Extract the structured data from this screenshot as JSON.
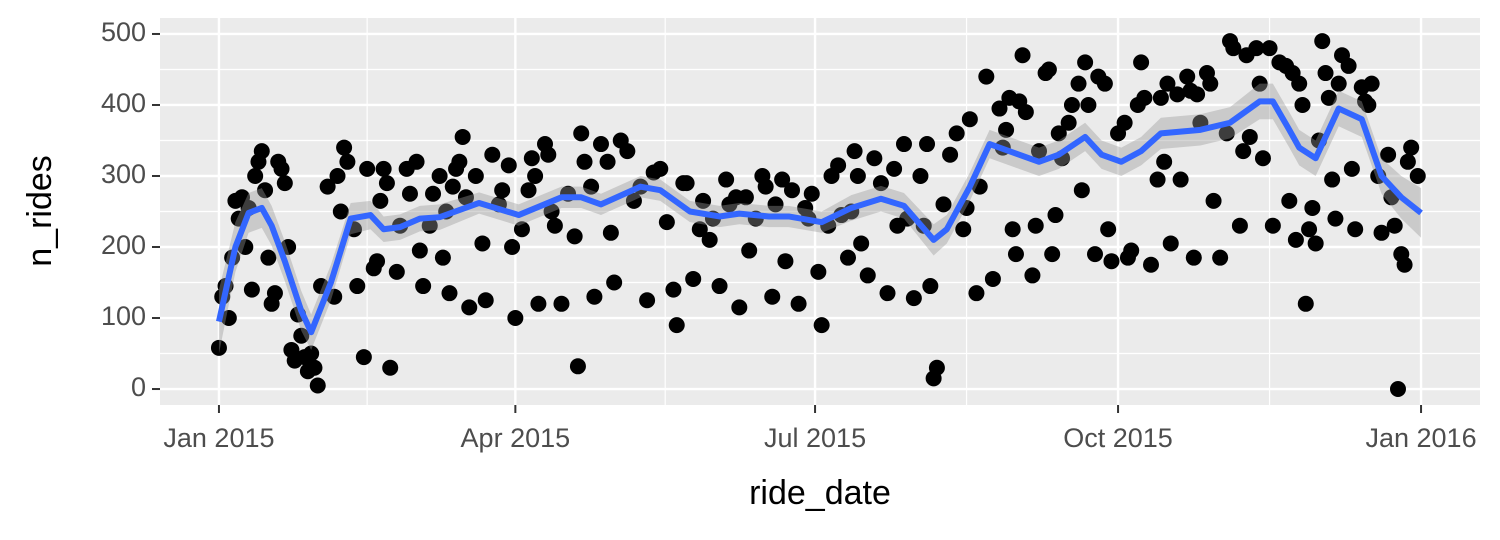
{
  "chart_data": {
    "type": "scatter",
    "x_label": "ride_date",
    "y_label": "n_rides",
    "xlim": [
      -17.9,
      382.9
    ],
    "ylim": [
      -22.5,
      522.5
    ],
    "xticks": [
      {
        "value": 0,
        "label": "Jan 2015"
      },
      {
        "value": 90,
        "label": "Apr 2015"
      },
      {
        "value": 181,
        "label": "Jul 2015"
      },
      {
        "value": 273,
        "label": "Oct 2015"
      },
      {
        "value": 365,
        "label": "Jan 2016"
      }
    ],
    "yticks": [
      0,
      100,
      200,
      300,
      400,
      500
    ],
    "grid": true,
    "points": {
      "color": "#000000",
      "x": [
        0,
        1,
        2,
        3,
        4,
        5,
        6,
        7,
        8,
        9,
        10,
        11,
        12,
        13,
        14,
        15,
        16,
        17,
        18,
        19,
        20,
        21,
        22,
        23,
        24,
        25,
        26,
        27,
        28,
        29,
        30,
        31,
        33,
        35,
        36,
        37,
        38,
        39,
        41,
        42,
        44,
        45,
        47,
        48,
        49,
        50,
        51,
        52,
        54,
        55,
        57,
        58,
        60,
        61,
        62,
        64,
        65,
        67,
        68,
        69,
        70,
        71,
        72,
        73,
        74,
        75,
        76,
        78,
        80,
        81,
        83,
        85,
        86,
        88,
        89,
        90,
        92,
        94,
        95,
        96,
        97,
        99,
        100,
        101,
        102,
        104,
        106,
        108,
        109,
        110,
        111,
        113,
        114,
        116,
        118,
        119,
        120,
        122,
        124,
        126,
        128,
        130,
        132,
        134,
        136,
        138,
        139,
        141,
        142,
        144,
        146,
        147,
        149,
        150,
        152,
        154,
        155,
        157,
        158,
        160,
        161,
        163,
        165,
        166,
        168,
        169,
        171,
        172,
        174,
        176,
        178,
        179,
        180,
        182,
        183,
        185,
        186,
        188,
        189,
        191,
        192,
        193,
        194,
        195,
        197,
        199,
        201,
        203,
        205,
        206,
        208,
        209,
        211,
        213,
        214,
        215,
        216,
        217,
        218,
        220,
        222,
        224,
        226,
        227,
        228,
        230,
        231,
        233,
        235,
        237,
        238,
        239,
        240,
        241,
        242,
        243,
        244,
        245,
        247,
        248,
        249,
        251,
        252,
        253,
        254,
        255,
        256,
        258,
        259,
        261,
        262,
        263,
        264,
        266,
        267,
        269,
        270,
        271,
        273,
        275,
        276,
        277,
        279,
        280,
        281,
        283,
        285,
        286,
        287,
        288,
        289,
        291,
        292,
        294,
        295,
        296,
        297,
        298,
        300,
        301,
        302,
        304,
        306,
        307,
        308,
        310,
        311,
        312,
        313,
        315,
        316,
        317,
        319,
        320,
        322,
        324,
        325,
        326,
        327,
        328,
        329,
        330,
        331,
        332,
        333,
        334,
        335,
        336,
        337,
        338,
        339,
        340,
        341,
        343,
        344,
        345,
        347,
        348,
        349,
        350,
        352,
        353,
        355,
        356,
        357,
        358,
        359,
        360,
        361,
        362,
        364
      ],
      "y": [
        58,
        130,
        145,
        100,
        185,
        265,
        240,
        270,
        200,
        255,
        140,
        300,
        320,
        335,
        280,
        185,
        120,
        135,
        320,
        310,
        290,
        200,
        55,
        40,
        105,
        75,
        45,
        25,
        50,
        30,
        5,
        145,
        285,
        130,
        300,
        250,
        340,
        320,
        225,
        145,
        45,
        310,
        170,
        180,
        265,
        310,
        290,
        30,
        165,
        230,
        310,
        275,
        320,
        195,
        145,
        230,
        275,
        300,
        185,
        250,
        135,
        285,
        310,
        320,
        355,
        270,
        115,
        300,
        205,
        125,
        330,
        260,
        280,
        315,
        200,
        100,
        225,
        280,
        325,
        300,
        120,
        345,
        330,
        250,
        230,
        120,
        275,
        215,
        32,
        360,
        320,
        285,
        130,
        345,
        320,
        220,
        150,
        350,
        335,
        265,
        285,
        125,
        305,
        310,
        235,
        140,
        90,
        290,
        290,
        155,
        225,
        265,
        210,
        240,
        145,
        295,
        260,
        270,
        115,
        270,
        195,
        240,
        300,
        285,
        130,
        260,
        295,
        180,
        280,
        120,
        255,
        240,
        275,
        165,
        90,
        230,
        300,
        315,
        245,
        185,
        250,
        335,
        300,
        205,
        160,
        325,
        290,
        135,
        310,
        230,
        345,
        240,
        128,
        300,
        230,
        345,
        145,
        15,
        30,
        260,
        330,
        360,
        225,
        255,
        380,
        135,
        285,
        440,
        155,
        395,
        340,
        365,
        410,
        225,
        190,
        405,
        470,
        390,
        160,
        230,
        335,
        445,
        450,
        190,
        245,
        360,
        325,
        375,
        400,
        430,
        280,
        460,
        400,
        190,
        440,
        430,
        225,
        180,
        360,
        375,
        185,
        195,
        400,
        460,
        410,
        175,
        295,
        410,
        320,
        430,
        205,
        415,
        295,
        440,
        420,
        185,
        415,
        375,
        445,
        430,
        265,
        185,
        360,
        490,
        480,
        230,
        335,
        470,
        355,
        480,
        430,
        325,
        480,
        230,
        460,
        455,
        265,
        445,
        210,
        430,
        400,
        120,
        225,
        255,
        205,
        350,
        490,
        445,
        410,
        295,
        240,
        430,
        470,
        455,
        310,
        225,
        425,
        405,
        400,
        430,
        300,
        220,
        330,
        270,
        230,
        0,
        190,
        175,
        320,
        340,
        300
      ]
    },
    "smooth": {
      "color": "#3366ff",
      "band_color": "#999999",
      "x": [
        0,
        5,
        9,
        13,
        16,
        20,
        25,
        28,
        34,
        40,
        46,
        50,
        55,
        61,
        67,
        79,
        91,
        104,
        110,
        116,
        128,
        134,
        143,
        152,
        158,
        167,
        173,
        183,
        192,
        201,
        208,
        217,
        221,
        228,
        234,
        240,
        249,
        255,
        263,
        268,
        274,
        280,
        286,
        298,
        307,
        316,
        320,
        325,
        328,
        333,
        340,
        347,
        353,
        359,
        365
      ],
      "values": [
        95,
        200,
        248,
        255,
        230,
        180,
        110,
        80,
        150,
        240,
        245,
        225,
        228,
        240,
        242,
        262,
        245,
        270,
        270,
        260,
        285,
        280,
        250,
        243,
        247,
        243,
        243,
        235,
        255,
        268,
        258,
        210,
        225,
        285,
        345,
        335,
        320,
        330,
        355,
        330,
        320,
        335,
        360,
        365,
        375,
        405,
        405,
        365,
        340,
        325,
        395,
        380,
        300,
        270,
        248
      ],
      "lower": [
        50,
        165,
        220,
        227,
        202,
        152,
        82,
        55,
        125,
        218,
        225,
        207,
        210,
        222,
        224,
        247,
        230,
        255,
        255,
        245,
        270,
        265,
        235,
        228,
        232,
        228,
        228,
        220,
        237,
        250,
        240,
        188,
        205,
        265,
        325,
        315,
        300,
        310,
        335,
        310,
        300,
        315,
        338,
        343,
        353,
        380,
        380,
        340,
        315,
        300,
        370,
        355,
        275,
        240,
        213
      ],
      "upper": [
        140,
        235,
        276,
        283,
        258,
        208,
        138,
        105,
        175,
        262,
        265,
        243,
        246,
        258,
        260,
        277,
        260,
        285,
        285,
        275,
        300,
        295,
        265,
        258,
        262,
        258,
        258,
        250,
        273,
        286,
        276,
        232,
        245,
        305,
        365,
        355,
        340,
        350,
        375,
        350,
        340,
        355,
        382,
        387,
        397,
        430,
        430,
        390,
        365,
        350,
        420,
        405,
        325,
        300,
        283
      ]
    }
  }
}
